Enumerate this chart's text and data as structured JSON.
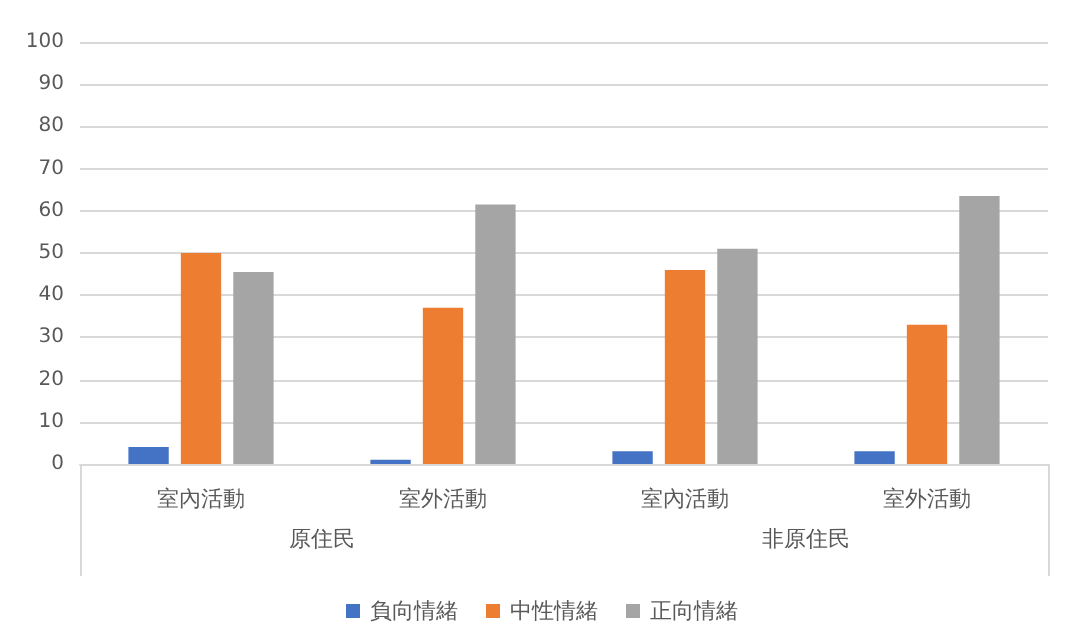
{
  "chart_data": {
    "type": "bar",
    "categories": [
      "室內活動",
      "室外活動",
      "室內活動",
      "室外活動"
    ],
    "series": [
      {
        "name": "負向情緒",
        "color": "#4472c4",
        "values": [
          4,
          1,
          3,
          3
        ]
      },
      {
        "name": "中性情緒",
        "color": "#ed7d31",
        "values": [
          50,
          37,
          46,
          33
        ]
      },
      {
        "name": "正向情緒",
        "color": "#a5a5a5",
        "values": [
          45.5,
          61.5,
          51,
          63.5
        ]
      }
    ],
    "annotations": [
      "原住民",
      "非原住民"
    ],
    "ylim": [
      0,
      100
    ],
    "yticks": [
      0,
      10,
      20,
      30,
      40,
      50,
      60,
      70,
      80,
      90,
      100
    ],
    "grid": "y",
    "legend": "bottom"
  }
}
